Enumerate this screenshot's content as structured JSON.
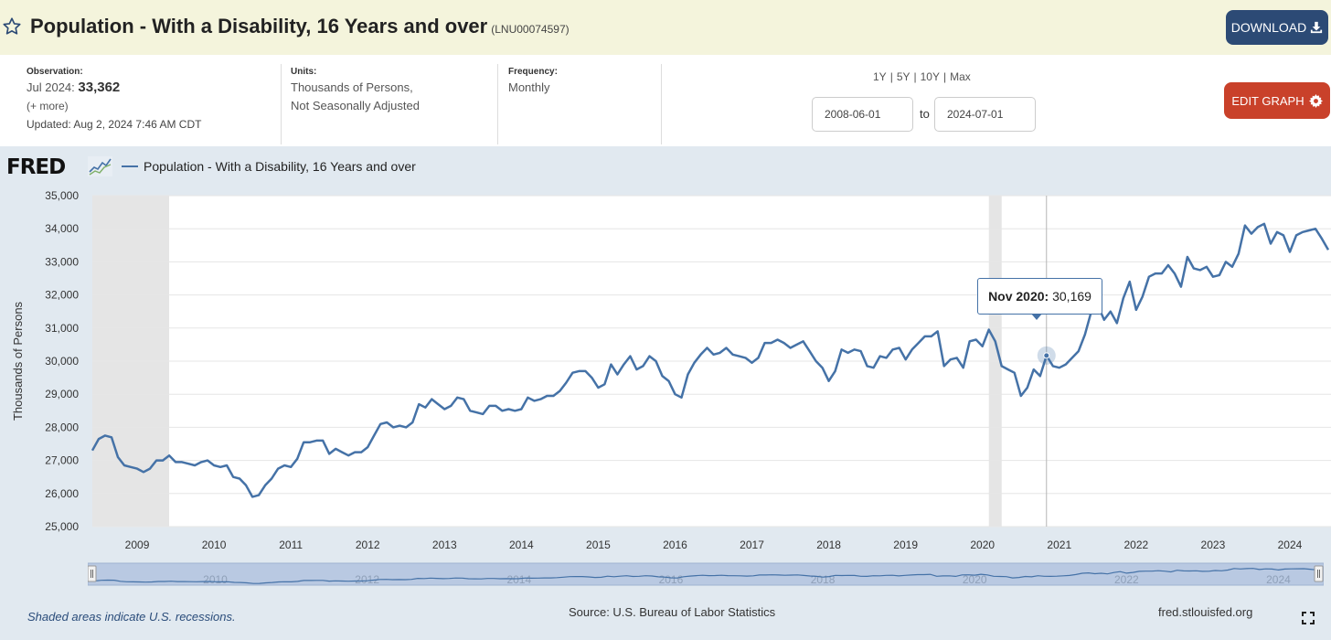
{
  "header": {
    "title": "Population - With a Disability, 16 Years and over",
    "series_id": "(LNU00074597)",
    "download_label": "DOWNLOAD",
    "icons": {
      "favorite": "star-icon",
      "download": "download-icon"
    }
  },
  "meta": {
    "observation_label": "Observation:",
    "observation_date": "Jul 2024:",
    "observation_value": "33,362",
    "more_label": "(+ more)",
    "updated": "Updated: Aug 2, 2024 7:46 AM CDT",
    "units_label": "Units:",
    "units_line1": "Thousands of Persons,",
    "units_line2": "Not Seasonally Adjusted",
    "frequency_label": "Frequency:",
    "frequency_value": "Monthly"
  },
  "controls": {
    "range_options": [
      "1Y",
      "5Y",
      "10Y",
      "Max"
    ],
    "start_date": "2008-06-01",
    "to_label": "to",
    "end_date": "2024-07-01",
    "edit_label": "EDIT GRAPH",
    "icons": {
      "edit": "gear-icon"
    }
  },
  "logo": {
    "text": "FRED",
    "icon": "line-chart-icon"
  },
  "legend": {
    "series_name": "Population - With a Disability, 16 Years and over"
  },
  "tooltip": {
    "label": "Nov 2020:",
    "value": "30,169"
  },
  "footer": {
    "note": "Shaded areas indicate U.S. recessions.",
    "source": "Source: U.S. Bureau of Labor Statistics",
    "site": "fred.stlouisfed.org",
    "icons": {
      "fullscreen": "fullscreen-icon"
    }
  },
  "colors": {
    "series": "#4572a7",
    "download_button": "#2c4a75",
    "edit_button": "#c9412a",
    "recession": "#e5e5e5",
    "title_bar": "#f4f4dc"
  },
  "chart_data": {
    "type": "line",
    "ylabel": "Thousands of Persons",
    "ylim": [
      25000,
      35000
    ],
    "yticks": [
      25000,
      26000,
      27000,
      28000,
      29000,
      30000,
      31000,
      32000,
      33000,
      34000,
      35000
    ],
    "ytick_labels": [
      "25,000",
      "26,000",
      "27,000",
      "28,000",
      "29,000",
      "30,000",
      "31,000",
      "32,000",
      "33,000",
      "34,000",
      "35,000"
    ],
    "x_range": [
      "2008-06",
      "2024-07"
    ],
    "xtick_labels": [
      "2009",
      "2010",
      "2011",
      "2012",
      "2013",
      "2014",
      "2015",
      "2016",
      "2017",
      "2018",
      "2019",
      "2020",
      "2021",
      "2022",
      "2023",
      "2024"
    ],
    "recessions": [
      [
        "2008-06",
        "2009-06"
      ],
      [
        "2020-02",
        "2020-04"
      ]
    ],
    "highlight": {
      "date": "2020-11",
      "value": 30169
    },
    "series": [
      {
        "name": "Population - With a Disability, 16 Years and over",
        "points": [
          [
            "2008-06",
            27300
          ],
          [
            "2008-07",
            27650
          ],
          [
            "2008-08",
            27750
          ],
          [
            "2008-09",
            27700
          ],
          [
            "2008-10",
            27100
          ],
          [
            "2008-11",
            26850
          ],
          [
            "2008-12",
            26800
          ],
          [
            "2009-01",
            26750
          ],
          [
            "2009-02",
            26650
          ],
          [
            "2009-03",
            26750
          ],
          [
            "2009-04",
            27000
          ],
          [
            "2009-05",
            27000
          ],
          [
            "2009-06",
            27150
          ],
          [
            "2009-07",
            26950
          ],
          [
            "2009-08",
            26950
          ],
          [
            "2009-09",
            26900
          ],
          [
            "2009-10",
            26850
          ],
          [
            "2009-11",
            26950
          ],
          [
            "2009-12",
            27000
          ],
          [
            "2010-01",
            26850
          ],
          [
            "2010-02",
            26800
          ],
          [
            "2010-03",
            26850
          ],
          [
            "2010-04",
            26500
          ],
          [
            "2010-05",
            26450
          ],
          [
            "2010-06",
            26250
          ],
          [
            "2010-07",
            25900
          ],
          [
            "2010-08",
            25950
          ],
          [
            "2010-09",
            26250
          ],
          [
            "2010-10",
            26450
          ],
          [
            "2010-11",
            26750
          ],
          [
            "2010-12",
            26850
          ],
          [
            "2011-01",
            26800
          ],
          [
            "2011-02",
            27050
          ],
          [
            "2011-03",
            27550
          ],
          [
            "2011-04",
            27550
          ],
          [
            "2011-05",
            27600
          ],
          [
            "2011-06",
            27600
          ],
          [
            "2011-07",
            27200
          ],
          [
            "2011-08",
            27350
          ],
          [
            "2011-09",
            27250
          ],
          [
            "2011-10",
            27150
          ],
          [
            "2011-11",
            27250
          ],
          [
            "2011-12",
            27250
          ],
          [
            "2012-01",
            27400
          ],
          [
            "2012-02",
            27750
          ],
          [
            "2012-03",
            28100
          ],
          [
            "2012-04",
            28150
          ],
          [
            "2012-05",
            28000
          ],
          [
            "2012-06",
            28050
          ],
          [
            "2012-07",
            28000
          ],
          [
            "2012-08",
            28150
          ],
          [
            "2012-09",
            28700
          ],
          [
            "2012-10",
            28600
          ],
          [
            "2012-11",
            28850
          ],
          [
            "2012-12",
            28700
          ],
          [
            "2013-01",
            28550
          ],
          [
            "2013-02",
            28650
          ],
          [
            "2013-03",
            28900
          ],
          [
            "2013-04",
            28850
          ],
          [
            "2013-05",
            28500
          ],
          [
            "2013-06",
            28450
          ],
          [
            "2013-07",
            28400
          ],
          [
            "2013-08",
            28650
          ],
          [
            "2013-09",
            28650
          ],
          [
            "2013-10",
            28500
          ],
          [
            "2013-11",
            28550
          ],
          [
            "2013-12",
            28500
          ],
          [
            "2014-01",
            28550
          ],
          [
            "2014-02",
            28900
          ],
          [
            "2014-03",
            28800
          ],
          [
            "2014-04",
            28850
          ],
          [
            "2014-05",
            28950
          ],
          [
            "2014-06",
            28950
          ],
          [
            "2014-07",
            29100
          ],
          [
            "2014-08",
            29350
          ],
          [
            "2014-09",
            29650
          ],
          [
            "2014-10",
            29700
          ],
          [
            "2014-11",
            29700
          ],
          [
            "2014-12",
            29500
          ],
          [
            "2015-01",
            29200
          ],
          [
            "2015-02",
            29300
          ],
          [
            "2015-03",
            29900
          ],
          [
            "2015-04",
            29600
          ],
          [
            "2015-05",
            29900
          ],
          [
            "2015-06",
            30150
          ],
          [
            "2015-07",
            29750
          ],
          [
            "2015-08",
            29850
          ],
          [
            "2015-09",
            30150
          ],
          [
            "2015-10",
            30000
          ],
          [
            "2015-11",
            29550
          ],
          [
            "2015-12",
            29400
          ],
          [
            "2016-01",
            29000
          ],
          [
            "2016-02",
            28900
          ],
          [
            "2016-03",
            29600
          ],
          [
            "2016-04",
            29950
          ],
          [
            "2016-05",
            30200
          ],
          [
            "2016-06",
            30400
          ],
          [
            "2016-07",
            30200
          ],
          [
            "2016-08",
            30250
          ],
          [
            "2016-09",
            30400
          ],
          [
            "2016-10",
            30200
          ],
          [
            "2016-11",
            30150
          ],
          [
            "2016-12",
            30100
          ],
          [
            "2017-01",
            29950
          ],
          [
            "2017-02",
            30100
          ],
          [
            "2017-03",
            30550
          ],
          [
            "2017-04",
            30550
          ],
          [
            "2017-05",
            30650
          ],
          [
            "2017-06",
            30550
          ],
          [
            "2017-07",
            30400
          ],
          [
            "2017-08",
            30500
          ],
          [
            "2017-09",
            30600
          ],
          [
            "2017-10",
            30300
          ],
          [
            "2017-11",
            30000
          ],
          [
            "2017-12",
            29800
          ],
          [
            "2018-01",
            29400
          ],
          [
            "2018-02",
            29700
          ],
          [
            "2018-03",
            30350
          ],
          [
            "2018-04",
            30250
          ],
          [
            "2018-05",
            30350
          ],
          [
            "2018-06",
            30300
          ],
          [
            "2018-07",
            29850
          ],
          [
            "2018-08",
            29800
          ],
          [
            "2018-09",
            30150
          ],
          [
            "2018-10",
            30100
          ],
          [
            "2018-11",
            30350
          ],
          [
            "2018-12",
            30400
          ],
          [
            "2019-01",
            30050
          ],
          [
            "2019-02",
            30350
          ],
          [
            "2019-03",
            30550
          ],
          [
            "2019-04",
            30750
          ],
          [
            "2019-05",
            30750
          ],
          [
            "2019-06",
            30900
          ],
          [
            "2019-07",
            29850
          ],
          [
            "2019-08",
            30050
          ],
          [
            "2019-09",
            30100
          ],
          [
            "2019-10",
            29800
          ],
          [
            "2019-11",
            30600
          ],
          [
            "2019-12",
            30650
          ],
          [
            "2020-01",
            30450
          ],
          [
            "2020-02",
            30950
          ],
          [
            "2020-03",
            30600
          ],
          [
            "2020-04",
            29850
          ],
          [
            "2020-05",
            29750
          ],
          [
            "2020-06",
            29650
          ],
          [
            "2020-07",
            28950
          ],
          [
            "2020-08",
            29200
          ],
          [
            "2020-09",
            29750
          ],
          [
            "2020-10",
            29550
          ],
          [
            "2020-11",
            30169
          ],
          [
            "2020-12",
            29850
          ],
          [
            "2021-01",
            29800
          ],
          [
            "2021-02",
            29900
          ],
          [
            "2021-03",
            30100
          ],
          [
            "2021-04",
            30300
          ],
          [
            "2021-05",
            30800
          ],
          [
            "2021-06",
            31500
          ],
          [
            "2021-07",
            31700
          ],
          [
            "2021-08",
            31250
          ],
          [
            "2021-09",
            31500
          ],
          [
            "2021-10",
            31150
          ],
          [
            "2021-11",
            31900
          ],
          [
            "2021-12",
            32400
          ],
          [
            "2022-01",
            31550
          ],
          [
            "2022-02",
            31950
          ],
          [
            "2022-03",
            32550
          ],
          [
            "2022-04",
            32650
          ],
          [
            "2022-05",
            32650
          ],
          [
            "2022-06",
            32900
          ],
          [
            "2022-07",
            32650
          ],
          [
            "2022-08",
            32250
          ],
          [
            "2022-09",
            33150
          ],
          [
            "2022-10",
            32800
          ],
          [
            "2022-11",
            32750
          ],
          [
            "2022-12",
            32850
          ],
          [
            "2023-01",
            32550
          ],
          [
            "2023-02",
            32600
          ],
          [
            "2023-03",
            33000
          ],
          [
            "2023-04",
            32850
          ],
          [
            "2023-05",
            33250
          ],
          [
            "2023-06",
            34100
          ],
          [
            "2023-07",
            33850
          ],
          [
            "2023-08",
            34050
          ],
          [
            "2023-09",
            34150
          ],
          [
            "2023-10",
            33550
          ],
          [
            "2023-11",
            33900
          ],
          [
            "2023-12",
            33800
          ],
          [
            "2024-01",
            33300
          ],
          [
            "2024-02",
            33800
          ],
          [
            "2024-03",
            33900
          ],
          [
            "2024-04",
            33950
          ],
          [
            "2024-05",
            34000
          ],
          [
            "2024-06",
            33700
          ],
          [
            "2024-07",
            33362
          ]
        ]
      }
    ]
  }
}
